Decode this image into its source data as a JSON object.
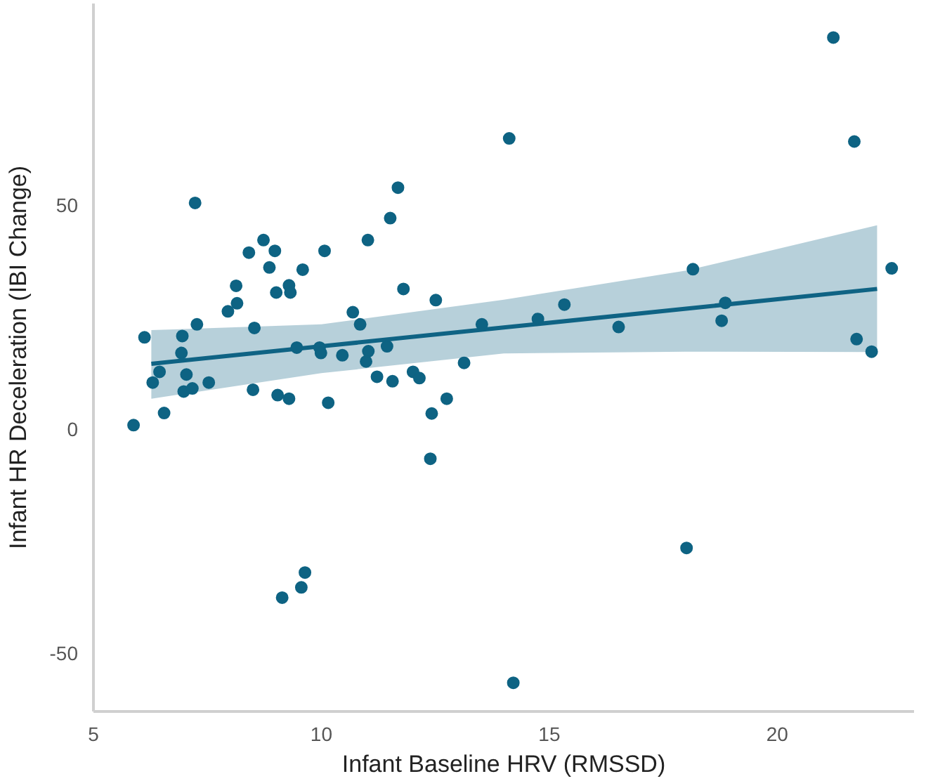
{
  "chart_data": {
    "type": "scatter",
    "xlabel": "Infant Baseline HRV (RMSSD)",
    "ylabel": "Infant HR Deceleration (IBI Change)",
    "xlim": [
      5,
      23
    ],
    "ylim": [
      -63,
      95
    ],
    "xticks": [
      5,
      10,
      15,
      20
    ],
    "yticks": [
      -50,
      0,
      50
    ],
    "grid": false,
    "series": [
      {
        "color": "#0e6383",
        "marker": "circle",
        "x": [
          6.12,
          7.23,
          6.95,
          6.93,
          7.27,
          7.95,
          8.13,
          8.15,
          8.41,
          8.53,
          8.73,
          8.98,
          8.86,
          9.01,
          9.29,
          9.32,
          9.59,
          9.46,
          9.96,
          9.99,
          10.07,
          10.46,
          10.69,
          10.85,
          11.02,
          11.03,
          10.98,
          11.44,
          11.51,
          11.68,
          11.8,
          12.51,
          13.13,
          13.52,
          14.12,
          6.45,
          6.3,
          5.88,
          6.55,
          7.04,
          6.98,
          7.17,
          7.53,
          8.5,
          9.04,
          9.29,
          10.15,
          11.22,
          11.56,
          12.01,
          12.15,
          12.75,
          12.42,
          12.39,
          9.14,
          9.56,
          9.64,
          14.21,
          21.23,
          21.69,
          22.51,
          18.15,
          15.33,
          14.75,
          16.52,
          18.86,
          18.78,
          21.74,
          22.07,
          18.01
        ],
        "values": [
          20.5,
          50.5,
          20.8,
          17.0,
          23.4,
          26.3,
          32.0,
          28.1,
          39.4,
          22.6,
          42.2,
          39.8,
          36.1,
          30.5,
          32.1,
          30.5,
          35.6,
          18.2,
          18.2,
          17.0,
          39.8,
          16.5,
          26.1,
          23.4,
          42.2,
          17.4,
          15.1,
          18.5,
          47.1,
          53.9,
          31.3,
          28.8,
          14.8,
          23.4,
          64.9,
          12.8,
          10.4,
          0.9,
          3.6,
          12.2,
          8.4,
          9.1,
          10.4,
          8.8,
          7.6,
          6.8,
          5.9,
          11.7,
          10.7,
          12.8,
          11.4,
          6.8,
          3.5,
          -6.6,
          -37.6,
          -35.3,
          -32.0,
          -56.6,
          87.4,
          64.2,
          35.9,
          35.7,
          27.8,
          24.6,
          22.8,
          28.2,
          24.2,
          20.1,
          17.3,
          -26.5
        ]
      },
      {
        "type": "line",
        "color": "#0f6384",
        "marker": "none",
        "x": [
          6.27,
          10,
          14,
          18,
          22.19
        ],
        "values": [
          14.6,
          18.5,
          22.7,
          26.9,
          31.3
        ],
        "lower": [
          6.8,
          12.5,
          16.9,
          17.3,
          17.2
        ],
        "upper": [
          22.1,
          23.4,
          28.9,
          35.4,
          45.5
        ]
      }
    ]
  }
}
